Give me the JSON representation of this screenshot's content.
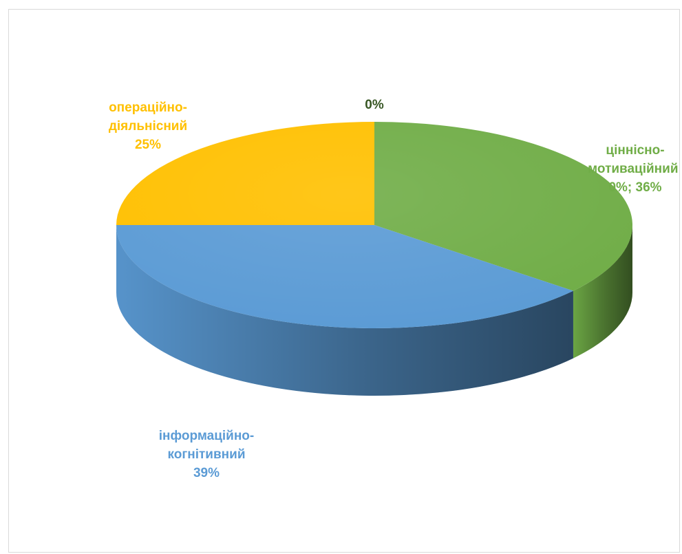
{
  "chart_data": {
    "type": "pie",
    "variant": "3d",
    "title": "",
    "slices": [
      {
        "name": "ціннісно-мотиваційний",
        "value": 36,
        "label_lines": [
          "ціннісно-",
          "мотиваційний;",
          "0%; 36%"
        ],
        "color": "#70ad47",
        "label_color": "#70ad47"
      },
      {
        "name": "інформаційно-когнітивний",
        "value": 39,
        "label_lines": [
          "інформаційно-",
          "когнітивний",
          "39%"
        ],
        "color": "#5b9bd5",
        "label_color": "#5b9bd5"
      },
      {
        "name": "операційно-діяльнісний",
        "value": 25,
        "label_lines": [
          "операційно-",
          "діяльнісний",
          "25%"
        ],
        "color": "#ffc000",
        "label_color": "#ffc000"
      },
      {
        "name": "",
        "value": 0,
        "label_lines": [
          "0%"
        ],
        "color": "#375623",
        "label_color": "#375623"
      }
    ]
  }
}
